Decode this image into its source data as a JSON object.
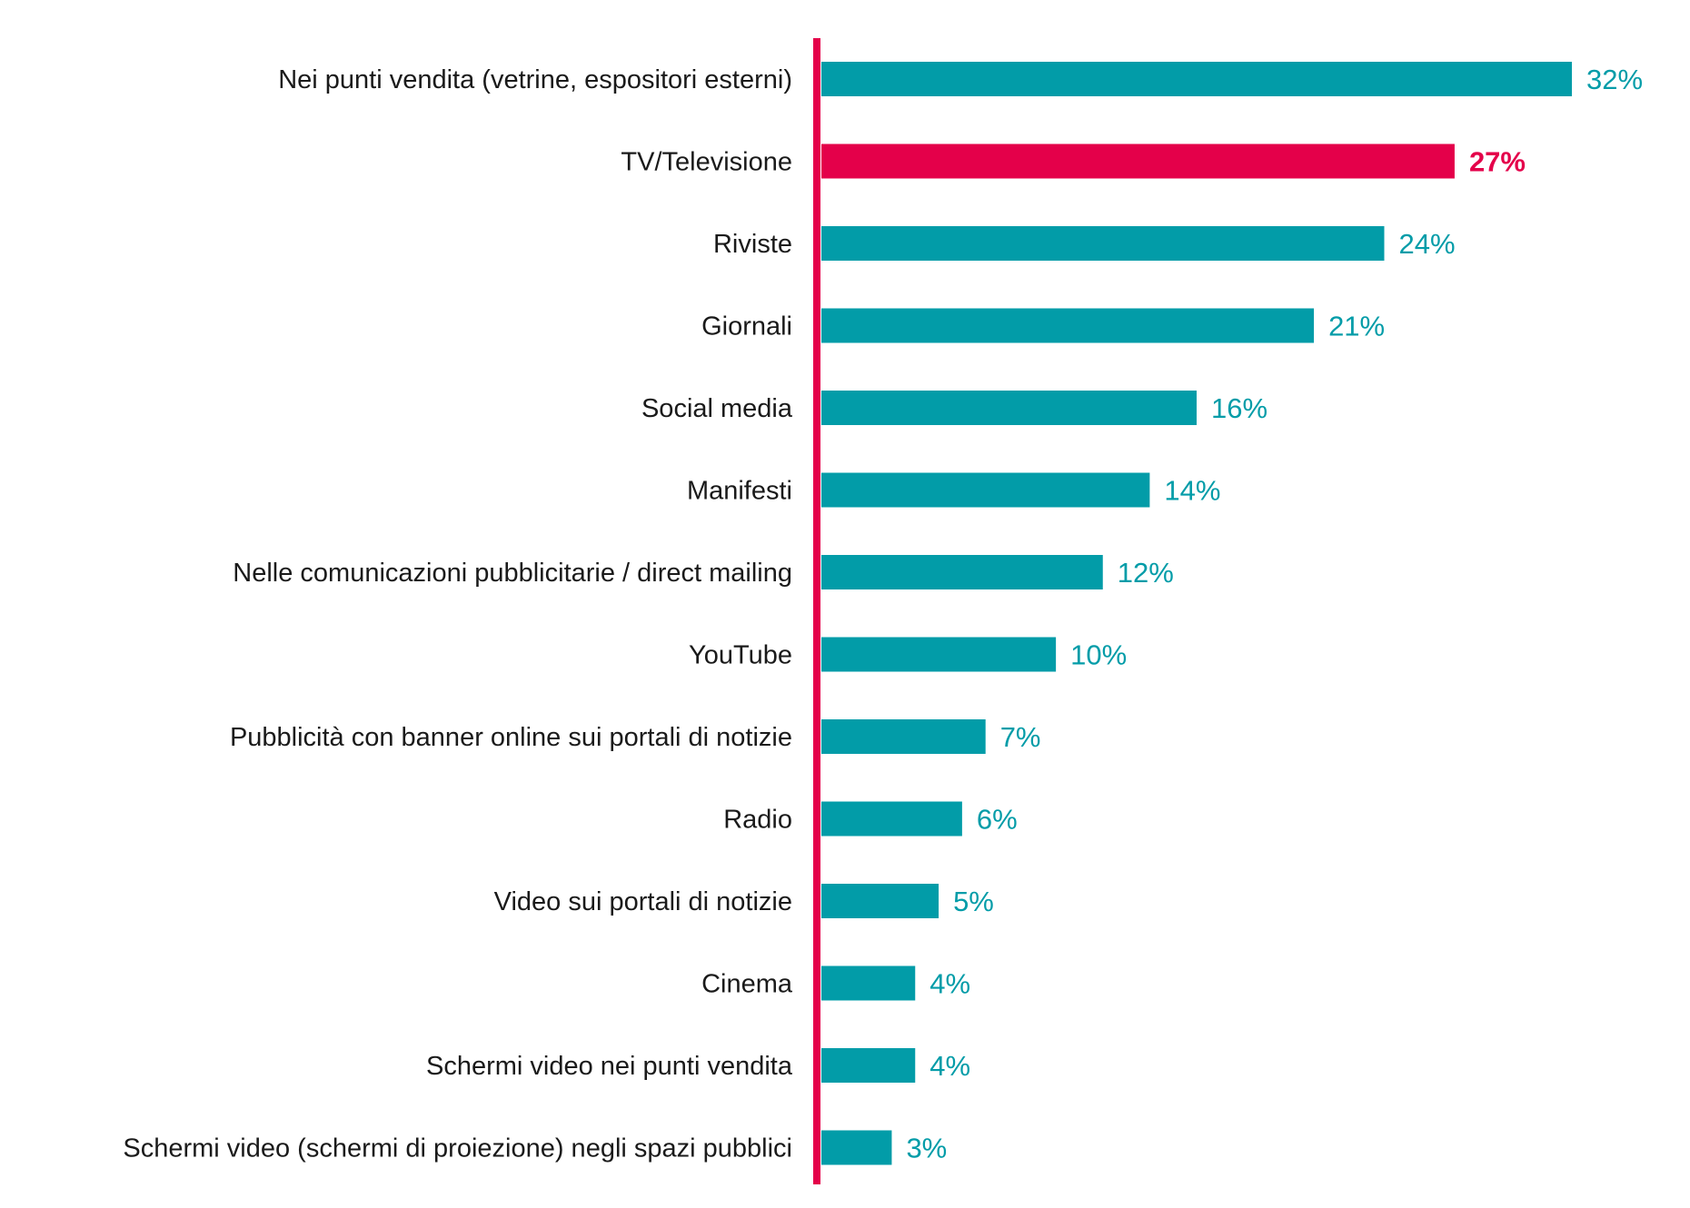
{
  "chart_data": {
    "type": "bar",
    "orientation": "horizontal",
    "categories": [
      "Nei punti vendita (vetrine, espositori esterni)",
      "TV/Televisione",
      "Riviste",
      "Giornali",
      "Social media",
      "Manifesti",
      "Nelle comunicazioni pubblicitarie / direct mailing",
      "YouTube",
      "Pubblicità con banner online sui portali di notizie",
      "Radio",
      "Video sui portali di notizie",
      "Cinema",
      "Schermi video nei punti vendita",
      "Schermi video (schermi di proiezione) negli spazi pubblici"
    ],
    "values": [
      32,
      27,
      24,
      21,
      16,
      14,
      12,
      10,
      7,
      6,
      5,
      4,
      4,
      3
    ],
    "value_labels": [
      "32%",
      "27%",
      "24%",
      "21%",
      "16%",
      "14%",
      "12%",
      "10%",
      "7%",
      "6%",
      "5%",
      "4%",
      "4%",
      "3%"
    ],
    "highlight_index": 1,
    "xlim": [
      0,
      32
    ],
    "grid": false,
    "legend": "none",
    "colors": {
      "bar": "#029ca8",
      "highlight": "#e4004a",
      "axis": "#e4004a",
      "label_text": "#1a1a1a"
    }
  }
}
